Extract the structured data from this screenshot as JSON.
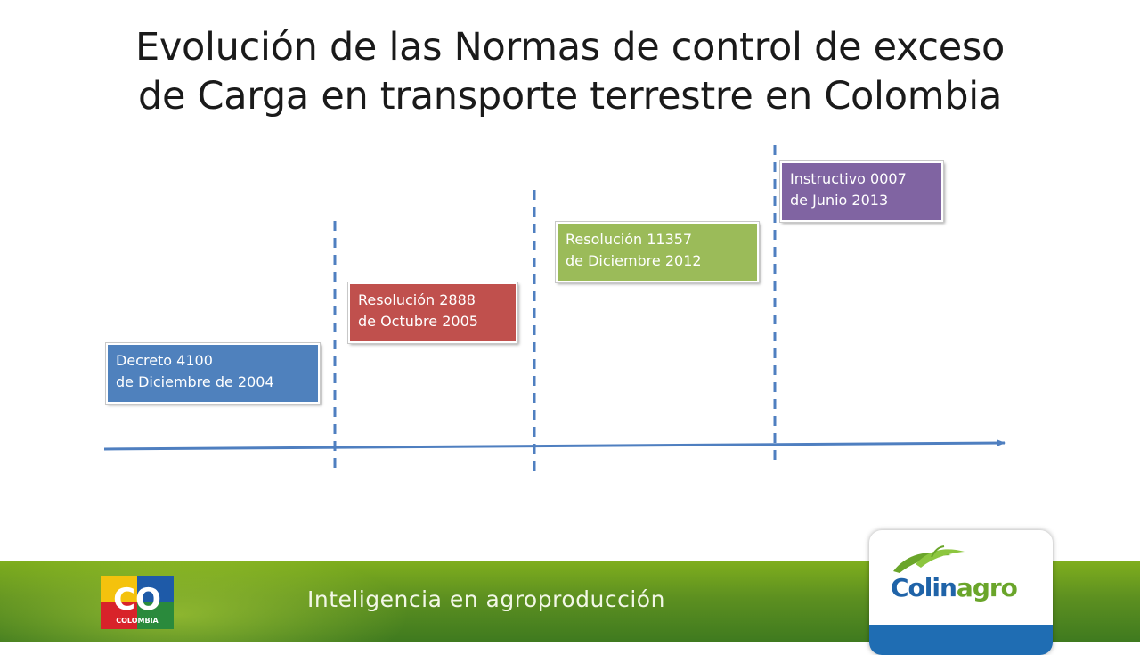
{
  "title": {
    "line1": "Evolución de las Normas de control de exceso",
    "line2": "de Carga en transporte terrestre en Colombia"
  },
  "events": [
    {
      "line1": "Decreto 4100",
      "line2": "de Diciembre de 2004",
      "color": "#4f81bd"
    },
    {
      "line1": "Resolución 2888",
      "line2": "de Octubre 2005",
      "color": "#c0504d"
    },
    {
      "line1": "Resolución 11357",
      "line2": "de Diciembre 2012",
      "color": "#9bbb59"
    },
    {
      "line1": "Instructivo 0007",
      "line2": "de Junio 2013",
      "color": "#8064a2"
    }
  ],
  "footer": {
    "slogan": "Inteligencia en agroproducción",
    "co_logo_text": "CO",
    "co_logo_subtext": "COLOMBIA",
    "brand_part1": "Colin",
    "brand_part2": "agro"
  },
  "colors": {
    "timeline": "#4f7fc0",
    "footer_green": "#5d9020",
    "brand_blue": "#1f63a8",
    "brand_green": "#6aa52a"
  }
}
